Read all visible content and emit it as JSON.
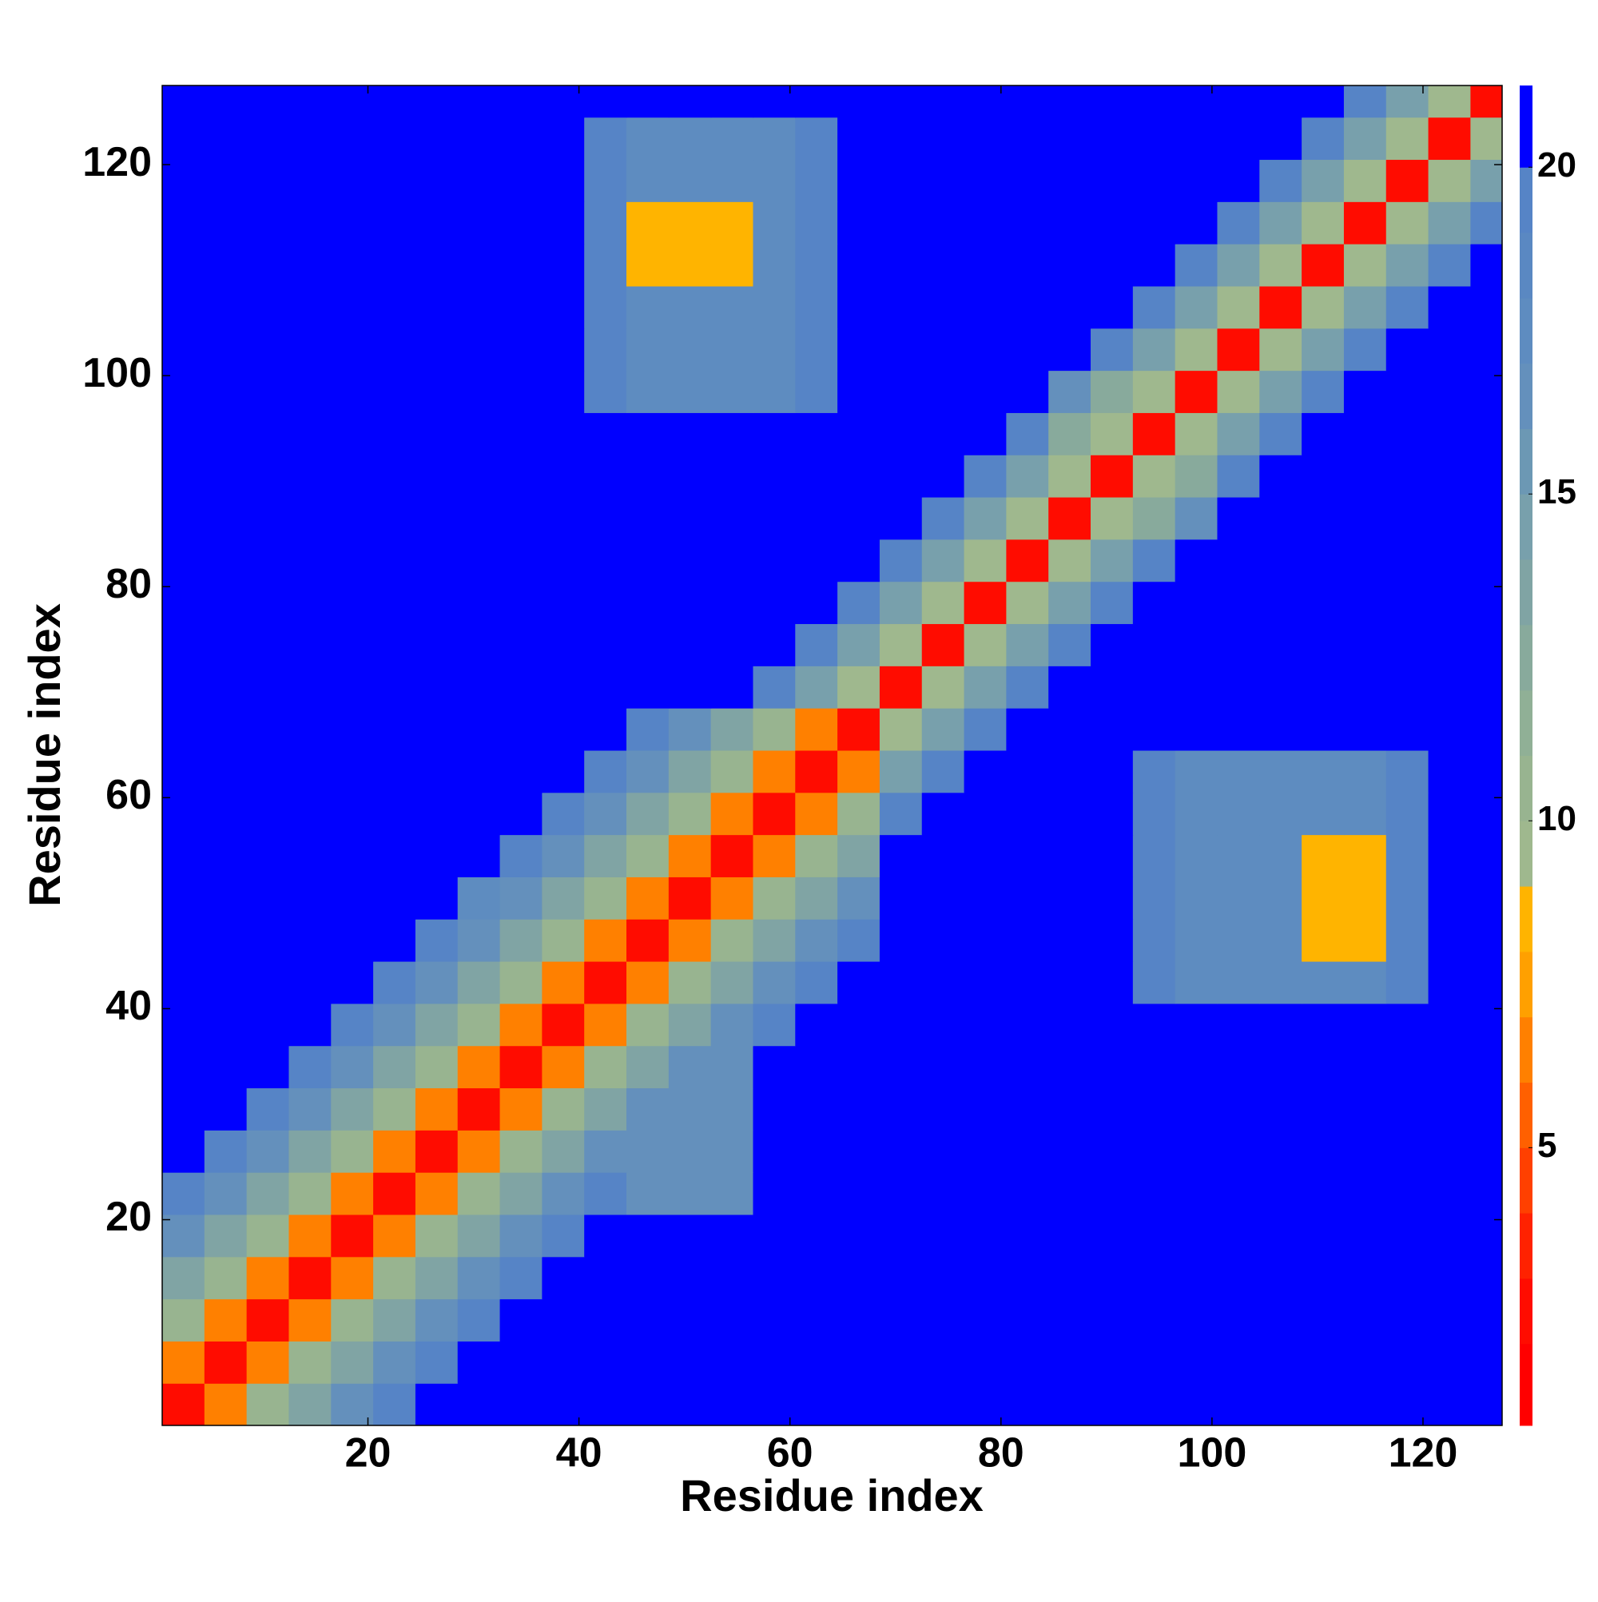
{
  "chart_data": {
    "type": "heatmap",
    "xlabel": "Residue index",
    "ylabel": "Residue index",
    "xlim": [
      0.5,
      127.5
    ],
    "ylim": [
      0.5,
      127.5
    ],
    "xticks": [
      20,
      40,
      60,
      80,
      100,
      120
    ],
    "yticks": [
      20,
      40,
      60,
      80,
      100,
      120
    ],
    "grid": false,
    "x": [
      2.5,
      6.5,
      10.5,
      14.5,
      18.5,
      22.5,
      26.5,
      30.5,
      34.5,
      38.5,
      42.5,
      46.5,
      50.5,
      54.5,
      58.5,
      62.5,
      66.5,
      70.5,
      74.5,
      78.5,
      82.5,
      86.5,
      90.5,
      94.5,
      98.5,
      102.5,
      106.5,
      110.5,
      114.5,
      118.5,
      122.5,
      126.5
    ],
    "y": [
      2.5,
      6.5,
      10.5,
      14.5,
      18.5,
      22.5,
      26.5,
      30.5,
      34.5,
      38.5,
      42.5,
      46.5,
      50.5,
      54.5,
      58.5,
      62.5,
      66.5,
      70.5,
      74.5,
      78.5,
      82.5,
      86.5,
      90.5,
      94.5,
      98.5,
      102.5,
      106.5,
      110.5,
      114.5,
      118.5,
      122.5,
      126.5
    ],
    "cell_size": 4,
    "z": [
      [
        2,
        6,
        10,
        13,
        16,
        19,
        21,
        21,
        21,
        21,
        21,
        21,
        21,
        21,
        21,
        21,
        21,
        21,
        21,
        21,
        21,
        21,
        21,
        21,
        21,
        21,
        21,
        21,
        21,
        21,
        21,
        21
      ],
      [
        6,
        2,
        6,
        10,
        13,
        16,
        19,
        21,
        21,
        21,
        21,
        21,
        21,
        21,
        21,
        21,
        21,
        21,
        21,
        21,
        21,
        21,
        21,
        21,
        21,
        21,
        21,
        21,
        21,
        21,
        21,
        21
      ],
      [
        10,
        6,
        2,
        6,
        10,
        13,
        16,
        19,
        21,
        21,
        21,
        21,
        21,
        21,
        21,
        21,
        21,
        21,
        21,
        21,
        21,
        21,
        21,
        21,
        21,
        21,
        21,
        21,
        21,
        21,
        21,
        21
      ],
      [
        13,
        10,
        6,
        2,
        6,
        10,
        13,
        16,
        19,
        21,
        21,
        21,
        21,
        21,
        21,
        21,
        21,
        21,
        21,
        21,
        21,
        21,
        21,
        21,
        21,
        21,
        21,
        21,
        21,
        21,
        21,
        21
      ],
      [
        16,
        13,
        10,
        6,
        2,
        6,
        10,
        13,
        16,
        19,
        21,
        21,
        21,
        21,
        21,
        21,
        21,
        21,
        21,
        21,
        21,
        21,
        21,
        21,
        21,
        21,
        21,
        21,
        21,
        21,
        21,
        21
      ],
      [
        19,
        16,
        13,
        10,
        6,
        2,
        6,
        10,
        13,
        16,
        19,
        16,
        16,
        16,
        21,
        21,
        21,
        21,
        21,
        21,
        21,
        21,
        21,
        21,
        21,
        21,
        21,
        21,
        21,
        21,
        21,
        21
      ],
      [
        21,
        19,
        16,
        13,
        10,
        6,
        2,
        6,
        10,
        13,
        16,
        16,
        16,
        16,
        21,
        21,
        21,
        21,
        21,
        21,
        21,
        21,
        21,
        21,
        21,
        21,
        21,
        21,
        21,
        21,
        21,
        21
      ],
      [
        21,
        21,
        19,
        16,
        13,
        10,
        6,
        2,
        6,
        10,
        13,
        16,
        16,
        16,
        21,
        21,
        21,
        21,
        21,
        21,
        21,
        21,
        21,
        21,
        21,
        21,
        21,
        21,
        21,
        21,
        21,
        21
      ],
      [
        21,
        21,
        21,
        19,
        16,
        13,
        10,
        6,
        2,
        6,
        10,
        13,
        16,
        16,
        21,
        21,
        21,
        21,
        21,
        21,
        21,
        21,
        21,
        21,
        21,
        21,
        21,
        21,
        21,
        21,
        21,
        21
      ],
      [
        21,
        21,
        21,
        21,
        19,
        16,
        13,
        10,
        6,
        2,
        6,
        10,
        13,
        16,
        19,
        21,
        21,
        21,
        21,
        21,
        21,
        21,
        21,
        21,
        21,
        21,
        21,
        21,
        21,
        21,
        21,
        21
      ],
      [
        21,
        21,
        21,
        21,
        21,
        19,
        16,
        13,
        10,
        6,
        2,
        6,
        10,
        13,
        16,
        19,
        21,
        21,
        21,
        21,
        21,
        21,
        21,
        19,
        17,
        17,
        17,
        17,
        17,
        19,
        21,
        21
      ],
      [
        21,
        21,
        21,
        21,
        21,
        21,
        19,
        16,
        13,
        10,
        6,
        2,
        6,
        10,
        13,
        16,
        19,
        21,
        21,
        21,
        21,
        21,
        21,
        19,
        17,
        17,
        17,
        8,
        8,
        19,
        21,
        21
      ],
      [
        21,
        21,
        21,
        21,
        21,
        21,
        21,
        17,
        16,
        13,
        10,
        6,
        2,
        6,
        10,
        13,
        16,
        21,
        21,
        21,
        21,
        21,
        21,
        19,
        17,
        17,
        17,
        8,
        8,
        19,
        21,
        21
      ],
      [
        21,
        21,
        21,
        21,
        21,
        21,
        21,
        21,
        19,
        16,
        13,
        10,
        6,
        2,
        6,
        10,
        13,
        21,
        21,
        21,
        21,
        21,
        21,
        19,
        17,
        17,
        17,
        8,
        8,
        19,
        21,
        21
      ],
      [
        21,
        21,
        21,
        21,
        21,
        21,
        21,
        21,
        21,
        19,
        16,
        13,
        10,
        6,
        2,
        6,
        10,
        19,
        21,
        21,
        21,
        21,
        21,
        19,
        17,
        17,
        17,
        17,
        17,
        19,
        21,
        21
      ],
      [
        21,
        21,
        21,
        21,
        21,
        21,
        21,
        21,
        21,
        21,
        19,
        16,
        13,
        10,
        6,
        2,
        6,
        14,
        19,
        21,
        21,
        21,
        21,
        19,
        17,
        17,
        17,
        17,
        17,
        19,
        21,
        21
      ],
      [
        21,
        21,
        21,
        21,
        21,
        21,
        21,
        21,
        21,
        21,
        21,
        19,
        16,
        13,
        10,
        6,
        2,
        9,
        14,
        19,
        21,
        21,
        21,
        21,
        21,
        21,
        21,
        21,
        21,
        21,
        21,
        21
      ],
      [
        21,
        21,
        21,
        21,
        21,
        21,
        21,
        21,
        21,
        21,
        21,
        21,
        21,
        21,
        19,
        14,
        9,
        2,
        9,
        14,
        19,
        21,
        21,
        21,
        21,
        21,
        21,
        21,
        21,
        21,
        21,
        21
      ],
      [
        21,
        21,
        21,
        21,
        21,
        21,
        21,
        21,
        21,
        21,
        21,
        21,
        21,
        21,
        21,
        19,
        14,
        9,
        2,
        9,
        14,
        19,
        21,
        21,
        21,
        21,
        21,
        21,
        21,
        21,
        21,
        21
      ],
      [
        21,
        21,
        21,
        21,
        21,
        21,
        21,
        21,
        21,
        21,
        21,
        21,
        21,
        21,
        21,
        21,
        19,
        14,
        9,
        2,
        9,
        14,
        19,
        21,
        21,
        21,
        21,
        21,
        21,
        21,
        21,
        21
      ],
      [
        21,
        21,
        21,
        21,
        21,
        21,
        21,
        21,
        21,
        21,
        21,
        21,
        21,
        21,
        21,
        21,
        21,
        19,
        14,
        9,
        2,
        9,
        14,
        19,
        21,
        21,
        21,
        21,
        21,
        21,
        21,
        21
      ],
      [
        21,
        21,
        21,
        21,
        21,
        21,
        21,
        21,
        21,
        21,
        21,
        21,
        21,
        21,
        21,
        21,
        21,
        21,
        19,
        14,
        9,
        2,
        9,
        12,
        16,
        21,
        21,
        21,
        21,
        21,
        21,
        21
      ],
      [
        21,
        21,
        21,
        21,
        21,
        21,
        21,
        21,
        21,
        21,
        21,
        21,
        21,
        21,
        21,
        21,
        21,
        21,
        21,
        19,
        14,
        9,
        2,
        9,
        12,
        19,
        21,
        21,
        21,
        21,
        21,
        21
      ],
      [
        21,
        21,
        21,
        21,
        21,
        21,
        21,
        21,
        21,
        21,
        21,
        21,
        21,
        21,
        21,
        21,
        21,
        21,
        21,
        21,
        19,
        12,
        9,
        2,
        9,
        14,
        19,
        21,
        21,
        21,
        21,
        21
      ],
      [
        21,
        21,
        21,
        21,
        21,
        21,
        21,
        21,
        21,
        21,
        19,
        17,
        17,
        17,
        17,
        19,
        21,
        21,
        21,
        21,
        21,
        16,
        12,
        9,
        2,
        9,
        14,
        19,
        21,
        21,
        21,
        21
      ],
      [
        21,
        21,
        21,
        21,
        21,
        21,
        21,
        21,
        21,
        21,
        19,
        17,
        17,
        17,
        17,
        19,
        21,
        21,
        21,
        21,
        21,
        21,
        19,
        14,
        9,
        2,
        9,
        14,
        19,
        21,
        21,
        21
      ],
      [
        21,
        21,
        21,
        21,
        21,
        21,
        21,
        21,
        21,
        21,
        19,
        17,
        17,
        17,
        17,
        19,
        21,
        21,
        21,
        21,
        21,
        21,
        21,
        19,
        14,
        9,
        2,
        9,
        14,
        19,
        21,
        21
      ],
      [
        21,
        21,
        21,
        21,
        21,
        21,
        21,
        21,
        21,
        21,
        19,
        8,
        8,
        8,
        17,
        19,
        21,
        21,
        21,
        21,
        21,
        21,
        21,
        21,
        19,
        14,
        9,
        2,
        9,
        14,
        19,
        21
      ],
      [
        21,
        21,
        21,
        21,
        21,
        21,
        21,
        21,
        21,
        21,
        19,
        8,
        8,
        8,
        17,
        19,
        21,
        21,
        21,
        21,
        21,
        21,
        21,
        21,
        21,
        19,
        14,
        9,
        2,
        9,
        14,
        19
      ],
      [
        21,
        21,
        21,
        21,
        21,
        21,
        21,
        21,
        21,
        21,
        19,
        17,
        17,
        17,
        17,
        19,
        21,
        21,
        21,
        21,
        21,
        21,
        21,
        21,
        21,
        21,
        19,
        14,
        9,
        2,
        9,
        14
      ],
      [
        21,
        21,
        21,
        21,
        21,
        21,
        21,
        21,
        21,
        21,
        19,
        17,
        17,
        17,
        17,
        19,
        21,
        21,
        21,
        21,
        21,
        21,
        21,
        21,
        21,
        21,
        21,
        19,
        14,
        9,
        2,
        9
      ],
      [
        21,
        21,
        21,
        21,
        21,
        21,
        21,
        21,
        21,
        21,
        21,
        21,
        21,
        21,
        21,
        21,
        21,
        21,
        21,
        21,
        21,
        21,
        21,
        21,
        21,
        21,
        21,
        21,
        19,
        14,
        9,
        2
      ]
    ],
    "colorbar": {
      "lim": [
        0.75,
        21.25
      ],
      "ticks": [
        5,
        10,
        15,
        20
      ],
      "levels": [
        0.75,
        2,
        3,
        4,
        5,
        6,
        7,
        8,
        9,
        10,
        11,
        12,
        13,
        14,
        15,
        16,
        17,
        18,
        19,
        20,
        21.25
      ],
      "colors": [
        "#ff0000",
        "#ff0c00",
        "#ff2200",
        "#ff4000",
        "#ff6000",
        "#ff8000",
        "#ffa000",
        "#ffb400",
        "#9fb88e",
        "#98b490",
        "#90b096",
        "#88aa9c",
        "#80a4a4",
        "#78a0ac",
        "#6c98b4",
        "#6490bc",
        "#5e8cc0",
        "#5a88c2",
        "#5684c6",
        "#0000ff"
      ]
    }
  }
}
